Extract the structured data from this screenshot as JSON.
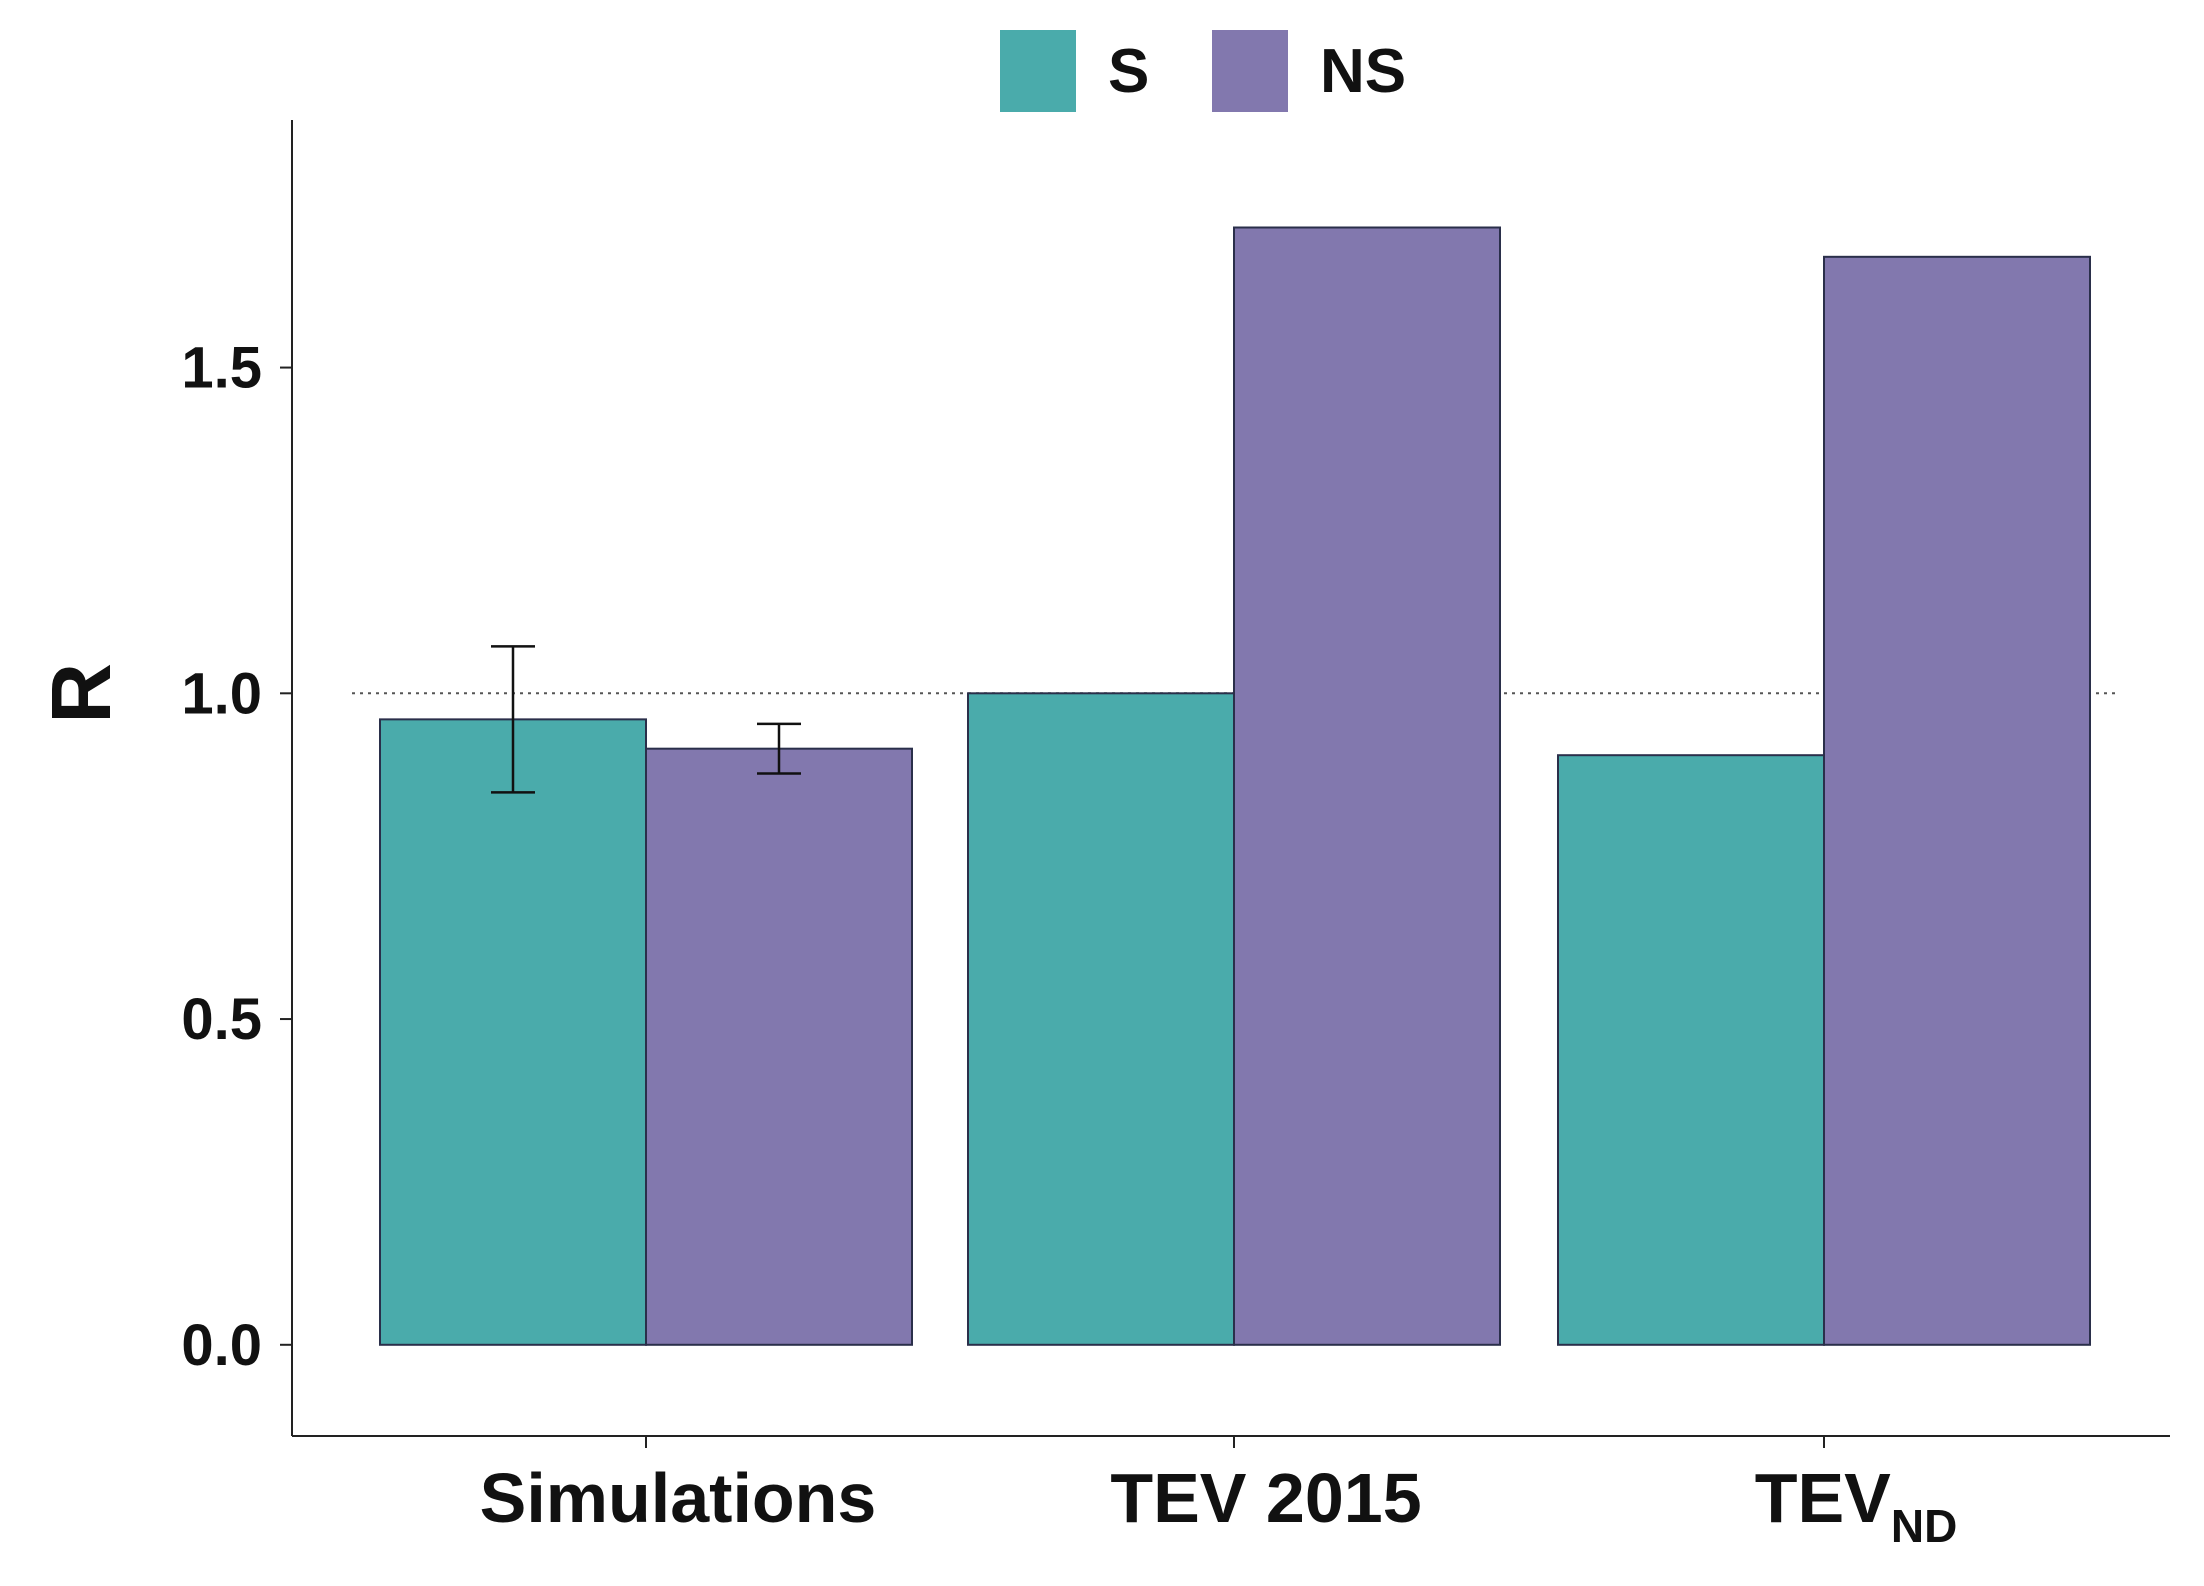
{
  "chart_data": {
    "type": "bar",
    "title": "",
    "xlabel": "",
    "ylabel": "R",
    "ylim": [
      -0.14,
      1.88
    ],
    "yticks": [
      0.0,
      0.5,
      1.0,
      1.5
    ],
    "ytick_labels": [
      "0.0",
      "0.5",
      "1.0",
      "1.5"
    ],
    "reference_line": 1.0,
    "grid": false,
    "legend_position": "top-center",
    "categories": [
      {
        "label": "Simulations",
        "main": "Simulations",
        "sub": ""
      },
      {
        "label": "TEV 2015",
        "main": "TEV 2015",
        "sub": ""
      },
      {
        "label": "TEVND",
        "main": "TEV",
        "sub": "ND"
      }
    ],
    "series": [
      {
        "name": "S",
        "color": "#4aabab",
        "values": [
          0.96,
          1.0,
          0.905
        ],
        "error": [
          0.112,
          null,
          null
        ]
      },
      {
        "name": "NS",
        "color": "#8278ae",
        "values": [
          0.915,
          1.715,
          1.67
        ],
        "error": [
          0.038,
          null,
          null
        ]
      }
    ]
  }
}
